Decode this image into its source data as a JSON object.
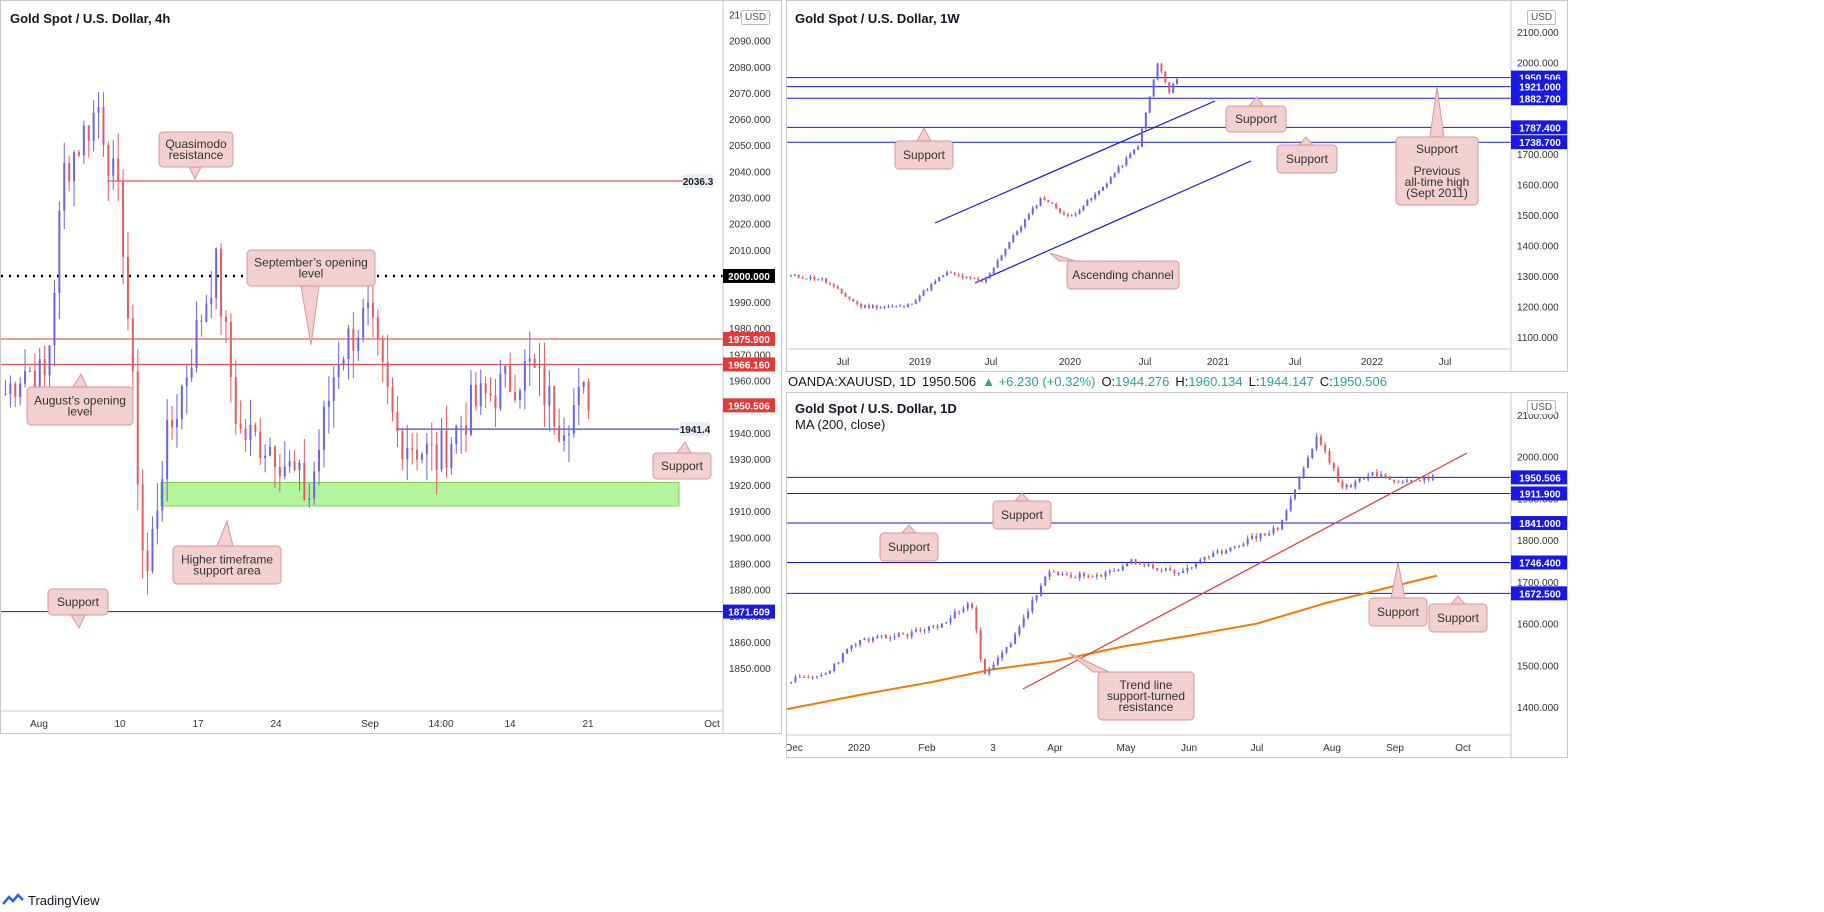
{
  "colors": {
    "up": "#6b63e8",
    "down": "#e85a62",
    "level_blue": "#1919e6",
    "level_red": "#e53935",
    "zone_green": "#b4f59c",
    "callout_bg": "#f3d0d0",
    "callout_border": "#d59898",
    "ma": "#f57c00"
  },
  "footer": {
    "brand": "TradingView"
  },
  "mid_header": {
    "symbol": "OANDA:XAUUSD, 1D",
    "last": "1950.506",
    "change": "▲ +6.230 (+0.32%)",
    "o_label": "O:",
    "o": "1944.276",
    "h_label": "H:",
    "h": "1960.134",
    "l_label": "L:",
    "l": "1944.147",
    "c_label": "C:",
    "c": "1950.506"
  },
  "panels": {
    "left": {
      "title": "Gold Spot / U.S. Dollar, 4h",
      "currency": "USD",
      "ticks": [
        "2100.000",
        "2090.000",
        "2080.000",
        "2070.000",
        "2060.000",
        "2050.000",
        "2040.000",
        "2030.000",
        "2020.000",
        "2010.000",
        "2000.000",
        "1990.000",
        "1980.000",
        "1970.000",
        "1960.000",
        "1950.000",
        "1940.000",
        "1930.000",
        "1920.000",
        "1910.000",
        "1900.000",
        "1890.000",
        "1880.000",
        "1870.000",
        "1860.000",
        "1850.000"
      ],
      "dates": [
        "Aug",
        "10",
        "17",
        "24",
        "Sep",
        "14:00",
        "14",
        "21",
        "Oct"
      ],
      "levels": [
        {
          "value": 2036.3,
          "kind": "red",
          "label": "2036.3"
        },
        {
          "value": 2000.0,
          "kind": "dotted",
          "label": "2000.000"
        },
        {
          "value": 1975.9,
          "kind": "red",
          "label": "1975.900"
        },
        {
          "value": 1966.16,
          "kind": "red",
          "label": "1966.160"
        },
        {
          "value": 1950.506,
          "kind": "price",
          "label": "1950.506"
        },
        {
          "value": 1941.4,
          "kind": "blue",
          "label": "1941.4"
        },
        {
          "value": 1871.609,
          "kind": "blue",
          "label": "1871.609"
        }
      ],
      "zone": {
        "low": 1912,
        "high": 1921
      },
      "callouts": [
        "Quasimodo resistance",
        "September's opening level",
        "August's opening level",
        "Support",
        "Higher timeframe support area",
        "Support"
      ]
    },
    "weekly": {
      "title": "Gold Spot / U.S. Dollar, 1W",
      "currency": "USD",
      "ticks": [
        "2100.000",
        "2000.000",
        "1900.000",
        "1800.000",
        "1700.000",
        "1600.000",
        "1500.000",
        "1400.000",
        "1300.000",
        "1200.000",
        "1100.000"
      ],
      "dates": [
        "Jul",
        "2019",
        "Jul",
        "2020",
        "Jul",
        "2021",
        "Jul",
        "2022",
        "Jul"
      ],
      "levels": [
        {
          "value": 1950.506,
          "label": "1950.506"
        },
        {
          "value": 1921.0,
          "label": "1921.000"
        },
        {
          "value": 1882.7,
          "label": "1882.700"
        },
        {
          "value": 1787.4,
          "label": "1787.400"
        },
        {
          "value": 1738.7,
          "label": "1738.700"
        }
      ],
      "callouts": [
        "Support",
        "Support",
        "Support",
        "Support Previous all-time high (Sept 2011)",
        "Ascending channel"
      ]
    },
    "daily": {
      "title": "Gold Spot / U.S. Dollar, 1D",
      "currency": "USD",
      "indicator": "MA (200, close)",
      "ticks": [
        "2100.000",
        "2000.000",
        "1900.000",
        "1800.000",
        "1700.000",
        "1600.000",
        "1500.000",
        "1400.000"
      ],
      "dates": [
        "Dec",
        "2020",
        "Feb",
        "3",
        "Apr",
        "May",
        "Jun",
        "Jul",
        "Aug",
        "Sep",
        "Oct"
      ],
      "levels": [
        {
          "value": 1950.506,
          "label": "1950.506"
        },
        {
          "value": 1911.9,
          "label": "1911.900"
        },
        {
          "value": 1841.0,
          "label": "1841.000"
        },
        {
          "value": 1746.4,
          "label": "1746.400"
        },
        {
          "value": 1672.5,
          "label": "1672.500"
        }
      ],
      "callouts": [
        "Support",
        "Support",
        "Support",
        "Support",
        "Trend line support-turned resistance"
      ]
    }
  },
  "chart_data": [
    {
      "type": "line",
      "title": "Gold Spot / U.S. Dollar, 4h",
      "x": [
        "Aug",
        "10",
        "17",
        "24",
        "Sep",
        "14:00",
        "14",
        "21"
      ],
      "series": [
        {
          "values": [
            1966,
            2060,
            1990,
            1935,
            1965,
            1945,
            1960,
            1950.506
          ]
        }
      ],
      "ylim": [
        1842,
        2103
      ]
    },
    {
      "type": "line",
      "title": "Gold Spot / U.S. Dollar, 1W",
      "x": [
        "Jul",
        "2019",
        "Jul",
        "2020",
        "Jul"
      ],
      "series": [
        {
          "values": [
            1240,
            1290,
            1420,
            1550,
            1950.506
          ]
        }
      ],
      "ylim": [
        1080,
        2120
      ]
    },
    {
      "type": "line",
      "title": "Gold Spot / U.S. Dollar, 1D",
      "x": [
        "Dec",
        "2020",
        "Feb",
        "3",
        "Apr",
        "May",
        "Jun",
        "Jul",
        "Aug",
        "Sep"
      ],
      "series": [
        {
          "name": "Gold Spot / U.S. Dollar",
          "values": [
            1465,
            1580,
            1600,
            1660,
            1480,
            1720,
            1735,
            1790,
            2040,
            1950.506
          ]
        },
        {
          "name": "MA (200, close)",
          "values": [
            1395,
            1430,
            1460,
            1490,
            1510,
            1545,
            1570,
            1600,
            1650,
            1715
          ]
        }
      ],
      "ylim": [
        1355,
        2125
      ]
    }
  ]
}
